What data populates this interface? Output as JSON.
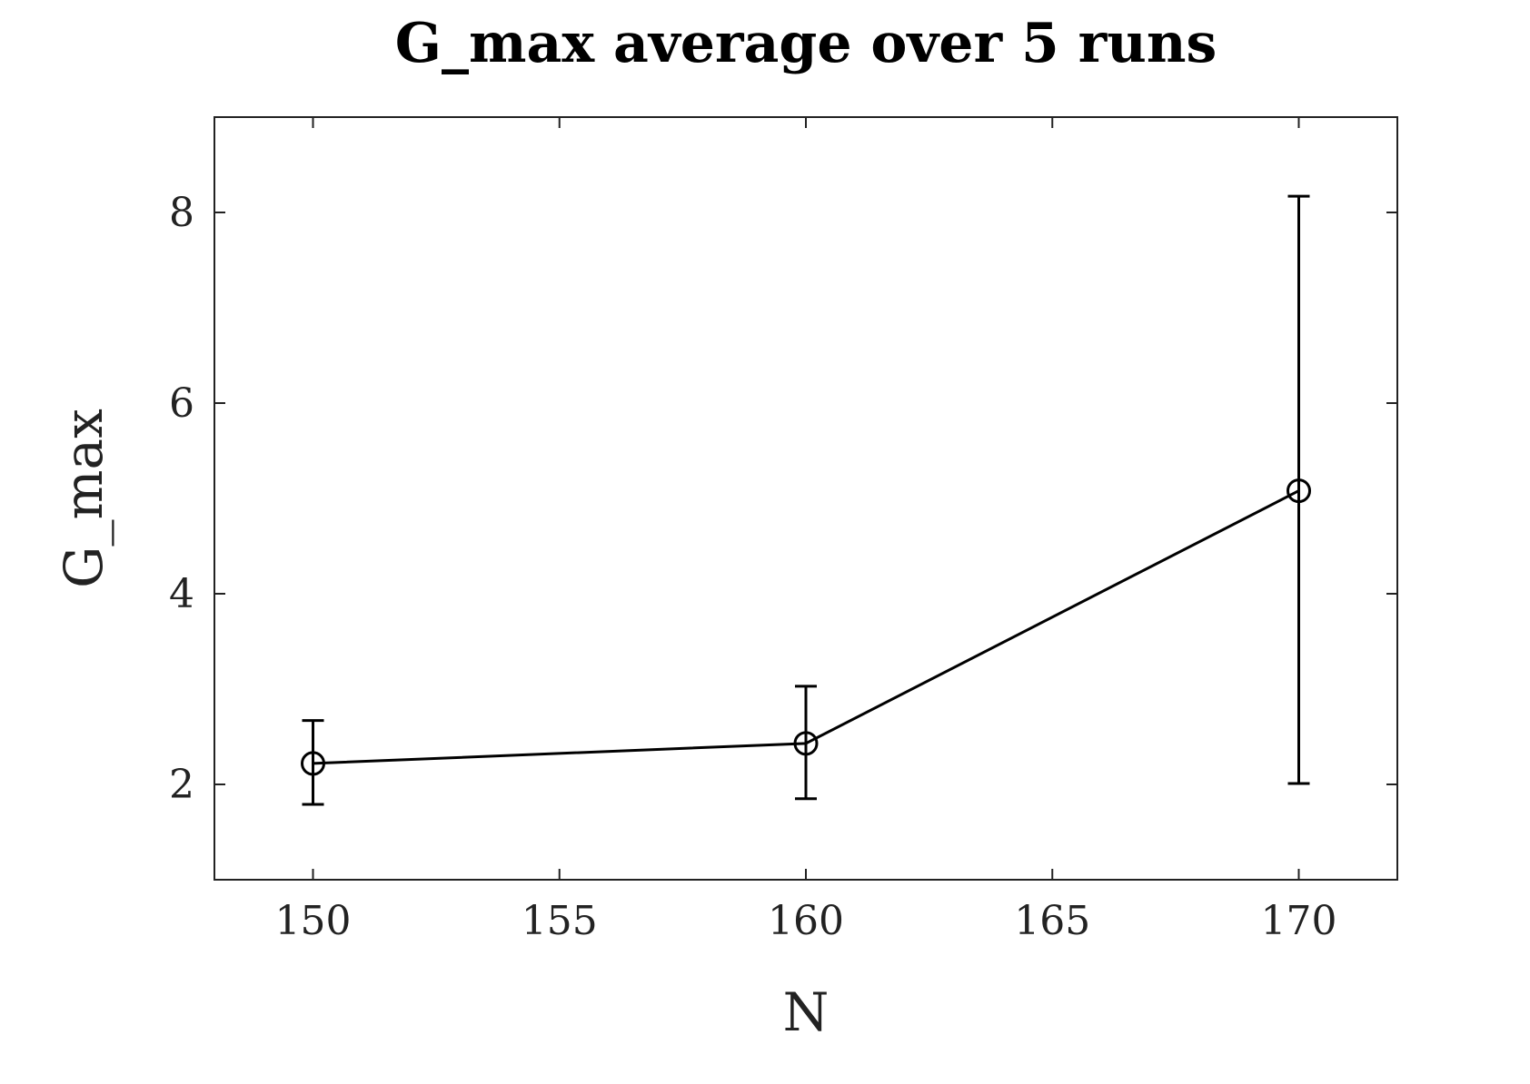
{
  "chart_data": {
    "type": "line",
    "title": "G_max average over 5 runs",
    "xlabel": "N",
    "ylabel": "G_max",
    "xlim": [
      148,
      172
    ],
    "ylim": [
      1,
      9
    ],
    "x_ticks": [
      150,
      155,
      160,
      165,
      170
    ],
    "y_ticks": [
      2,
      4,
      6,
      8
    ],
    "grid": false,
    "series": [
      {
        "x": [
          150,
          160,
          170
        ],
        "y": [
          2.22,
          2.43,
          5.08
        ],
        "error_low": [
          1.79,
          1.85,
          2.01
        ],
        "error_high": [
          2.67,
          3.03,
          8.17
        ],
        "marker": "circle",
        "color": "#000000"
      }
    ]
  }
}
